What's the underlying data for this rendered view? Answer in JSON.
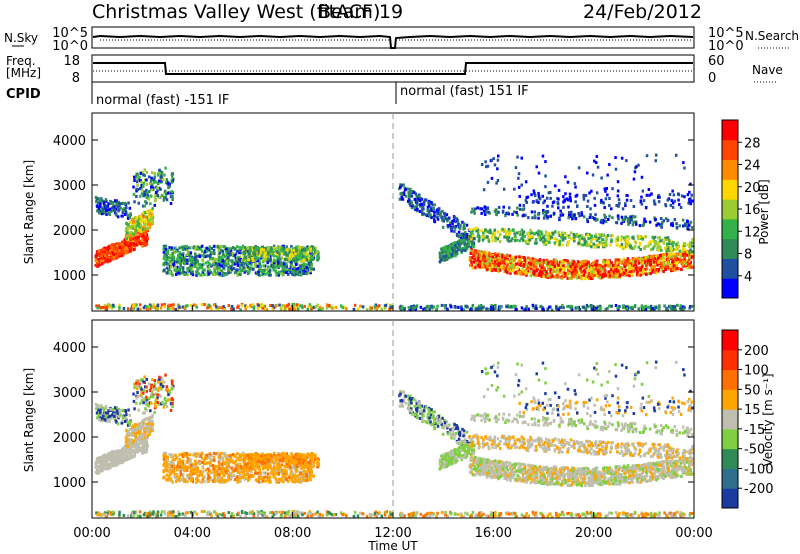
{
  "header": {
    "title": "Christmas Valley West (fitACF)",
    "beam": "Beam 19",
    "date": "24/Feb/2012"
  },
  "noise_panel": {
    "left_label": "N.Sky",
    "right_label": "N.Search",
    "left_ticks": [
      "10^5",
      "10^0"
    ],
    "right_ticks": [
      "10^5",
      "10^0"
    ]
  },
  "freq_panel": {
    "left_label_line1": "Freq.",
    "left_label_line2": "[MHz]",
    "left_ticks": [
      "18",
      "8"
    ],
    "right_label": "Nave",
    "right_ticks": [
      "60",
      "0"
    ]
  },
  "cpid": {
    "label": "CPID",
    "segments": [
      "normal (fast) -151 IF",
      "normal (fast) 151 IF"
    ]
  },
  "time_axis": {
    "label": "Time UT",
    "ticks": [
      "00:00",
      "04:00",
      "08:00",
      "12:00",
      "16:00",
      "20:00",
      "00:00"
    ]
  },
  "colors": {
    "power_scale": [
      "#0000ff",
      "#1f4fa0",
      "#2e8b57",
      "#33b24a",
      "#9acd32",
      "#ffd700",
      "#ff8c00",
      "#ff4500",
      "#ff0000"
    ],
    "velocity_scale": [
      "#1a3aa0",
      "#2e6e8e",
      "#2e8b57",
      "#7fd040",
      "#bfbfb0",
      "#ffa500",
      "#ff7000",
      "#ff3000",
      "#ff0000"
    ]
  },
  "chart_data": [
    {
      "type": "heatmap",
      "name": "power",
      "ylabel": "Slant Range [km]",
      "xlabel": "",
      "ylim": [
        200,
        4600
      ],
      "y_ticks": [
        "1000",
        "2000",
        "3000",
        "4000"
      ],
      "colorbar_label": "Power [dB]",
      "colorbar_ticks": [
        "28",
        "24",
        "20",
        "16",
        "12",
        "8",
        "4"
      ],
      "colorbar_range": [
        0,
        32
      ]
    },
    {
      "type": "heatmap",
      "name": "velocity",
      "ylabel": "Slant Range [km]",
      "xlabel": "Time UT",
      "ylim": [
        200,
        4600
      ],
      "y_ticks": [
        "1000",
        "2000",
        "3000",
        "4000"
      ],
      "colorbar_label": "Velocity [m s⁻¹]",
      "colorbar_ticks": [
        "200",
        "100",
        "50",
        "15",
        "-15",
        "-50",
        "-100",
        "-200"
      ]
    }
  ]
}
